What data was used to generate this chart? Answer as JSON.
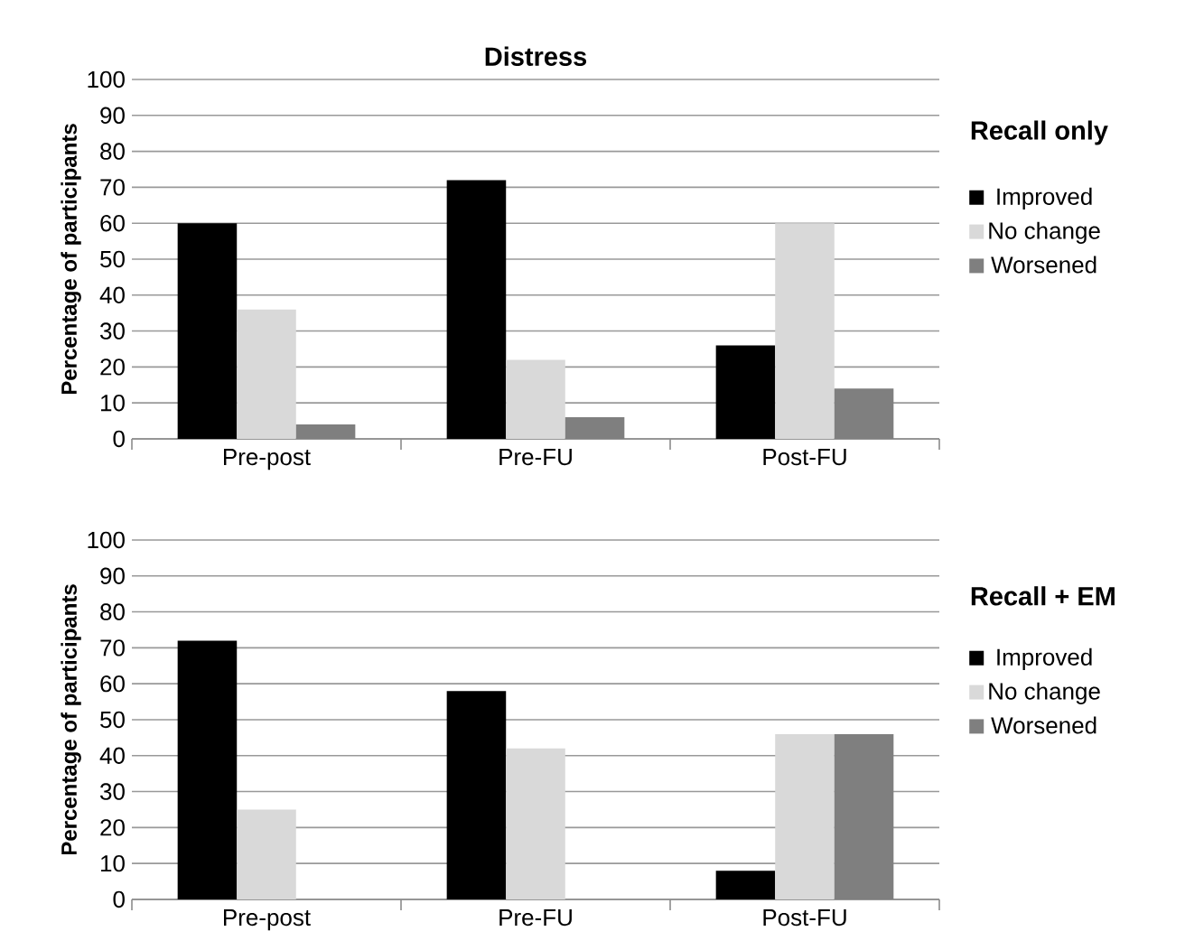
{
  "chart_data": [
    {
      "type": "bar",
      "title": "Distress",
      "legend_title": "Recall only",
      "ylabel": "Percentage of participants",
      "categories": [
        "Pre-post",
        "Pre-FU",
        "Post-FU"
      ],
      "ylim": [
        0,
        100
      ],
      "yticks": [
        0,
        10,
        20,
        30,
        40,
        50,
        60,
        70,
        80,
        90,
        100
      ],
      "grid": "y",
      "legend": "right",
      "series": [
        {
          "name": "Improved",
          "color": "#000000",
          "values": [
            60,
            72,
            26
          ]
        },
        {
          "name": "No change",
          "color": "#d9d9d9",
          "values": [
            36,
            22,
            60
          ]
        },
        {
          "name": "Worsened",
          "color": "#7f7f7f",
          "values": [
            4,
            6,
            14
          ]
        }
      ]
    },
    {
      "type": "bar",
      "legend_title": "Recall + EM",
      "ylabel": "Percentage of participants",
      "categories": [
        "Pre-post",
        "Pre-FU",
        "Post-FU"
      ],
      "ylim": [
        0,
        100
      ],
      "yticks": [
        0,
        10,
        20,
        30,
        40,
        50,
        60,
        70,
        80,
        90,
        100
      ],
      "grid": "y",
      "legend": "right",
      "series": [
        {
          "name": "Improved",
          "color": "#000000",
          "values": [
            72,
            58,
            8
          ]
        },
        {
          "name": "No change",
          "color": "#d9d9d9",
          "values": [
            25,
            42,
            46
          ]
        },
        {
          "name": "Worsened",
          "color": "#7f7f7f",
          "values": [
            0,
            0,
            46
          ]
        }
      ]
    }
  ]
}
